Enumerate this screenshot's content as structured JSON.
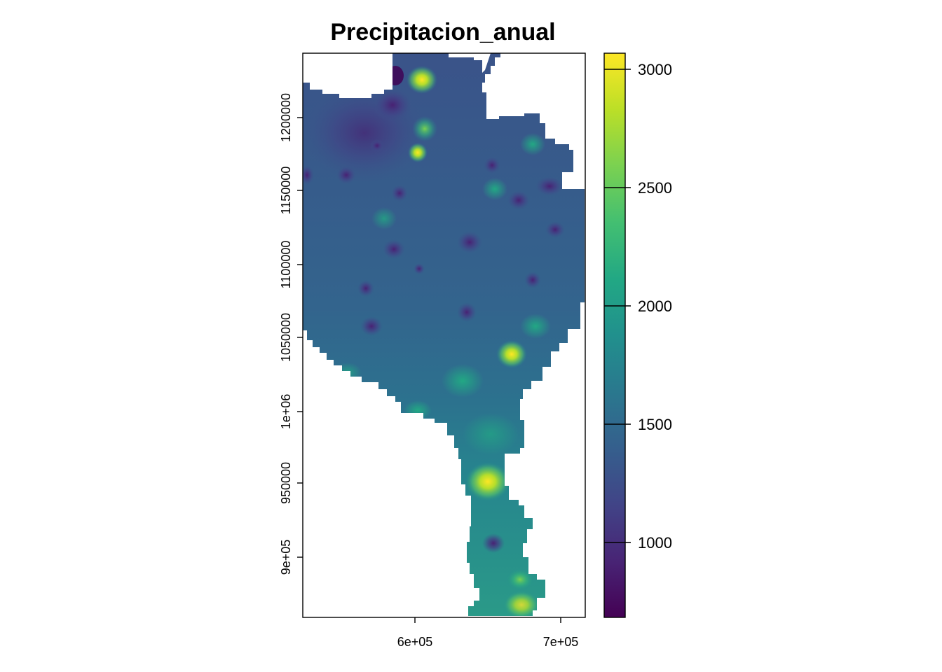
{
  "map": {
    "title": "Precipitacion_anual",
    "x_ticks": [
      "6e+05",
      "7e+05"
    ],
    "y_ticks": [
      "9e+05",
      "950000",
      "1e+06",
      "1050000",
      "1100000",
      "1150000",
      "1200000"
    ]
  },
  "legend": {
    "labels": [
      "1000",
      "1500",
      "2000",
      "2500",
      "3000"
    ],
    "range": [
      670,
      3060
    ],
    "palette": [
      "#440154",
      "#3B528B",
      "#21908C",
      "#5DC863",
      "#FDE725"
    ]
  }
}
